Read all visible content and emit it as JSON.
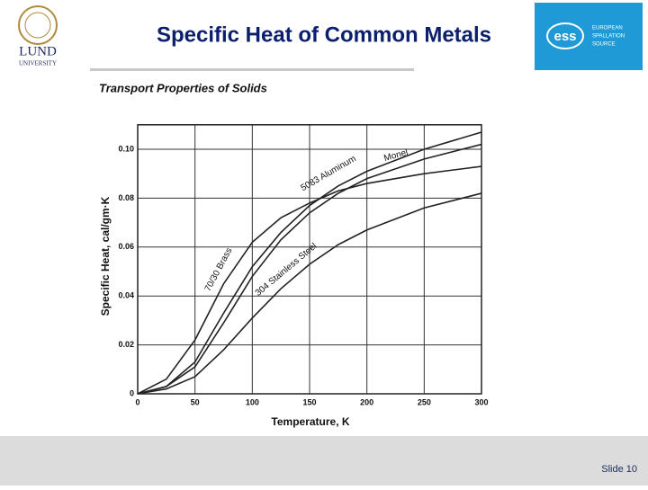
{
  "slide": {
    "title": "Specific Heat of Common Metals",
    "footer": "Slide 10",
    "left_logo": {
      "name": "LUND",
      "subname": "UNIVERSITY"
    },
    "right_logo": {
      "mark": "ess",
      "lines": [
        "EUROPEAN",
        "SPALLATION",
        "SOURCE"
      ]
    }
  },
  "chart_data": {
    "type": "line",
    "title": "Transport Properties of Solids",
    "x_label": "Temperature, K",
    "y_label": "Specific Heat, cal/gm·K",
    "x": [
      0,
      25,
      50,
      75,
      100,
      125,
      150,
      175,
      200,
      250,
      300
    ],
    "series": [
      {
        "name": "5083 Aluminum",
        "color": "#222222",
        "values": [
          0,
          0.003,
          0.013,
          0.033,
          0.052,
          0.066,
          0.077,
          0.085,
          0.091,
          0.1,
          0.107
        ]
      },
      {
        "name": "Monel",
        "color": "#222222",
        "values": [
          0,
          0.003,
          0.011,
          0.029,
          0.048,
          0.063,
          0.074,
          0.082,
          0.088,
          0.096,
          0.102
        ]
      },
      {
        "name": "70/30 Brass",
        "color": "#222222",
        "values": [
          0,
          0.006,
          0.022,
          0.045,
          0.062,
          0.072,
          0.078,
          0.083,
          0.086,
          0.09,
          0.093
        ]
      },
      {
        "name": "304 Stainless Steel",
        "color": "#222222",
        "values": [
          0,
          0.002,
          0.007,
          0.018,
          0.031,
          0.043,
          0.053,
          0.061,
          0.067,
          0.076,
          0.082
        ]
      }
    ],
    "xlim": [
      0,
      300
    ],
    "xticks": [
      0,
      50,
      100,
      150,
      200,
      250,
      300
    ],
    "ylim": [
      0,
      0.11
    ],
    "yticks": [
      0,
      0.02,
      0.04,
      0.06,
      0.08,
      {
        "value": 0.1,
        "label": "0.10"
      }
    ],
    "grid": true
  }
}
